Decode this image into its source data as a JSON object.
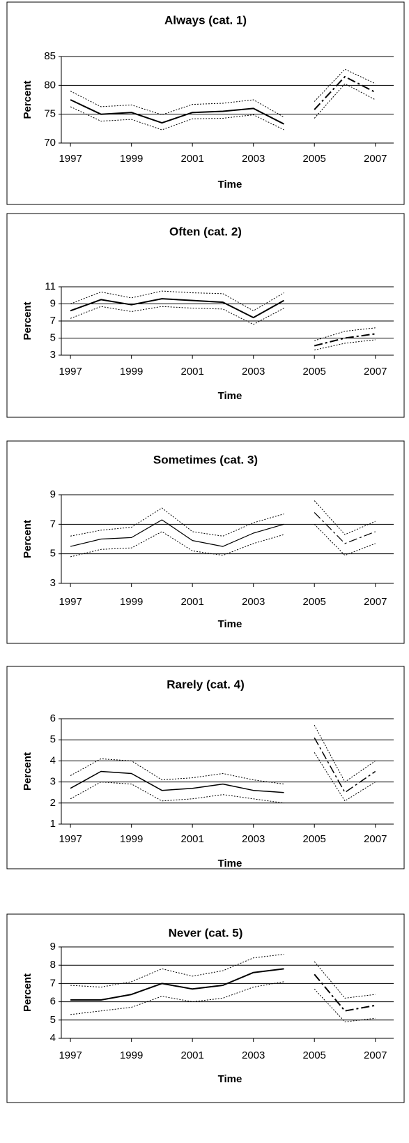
{
  "chart_data": [
    {
      "type": "line",
      "title": "Always (cat. 1)",
      "xlabel": "Time",
      "ylabel": "Percent",
      "x": [
        1997,
        1998,
        1999,
        2000,
        2001,
        2002,
        2003,
        2004,
        2005,
        2006,
        2007
      ],
      "xlim": [
        1996.7,
        2007.6
      ],
      "xticks": [
        1997,
        1999,
        2001,
        2003,
        2005,
        2007
      ],
      "ylim": [
        70,
        85
      ],
      "yticks": [
        70,
        75,
        80,
        85
      ],
      "grid": true,
      "line_width": 2,
      "series": [
        {
          "color": "#000000",
          "dash": "solid",
          "values": [
            77.5,
            75.0,
            75.3,
            73.5,
            75.3,
            75.5,
            76.0,
            73.3,
            null,
            null,
            null
          ]
        },
        {
          "color": "#000000",
          "dash": "dotted",
          "values": [
            79.0,
            76.3,
            76.6,
            74.9,
            76.7,
            76.9,
            77.5,
            74.5,
            null,
            null,
            null
          ]
        },
        {
          "color": "#000000",
          "dash": "dotted",
          "values": [
            76.3,
            73.8,
            74.1,
            72.3,
            74.2,
            74.3,
            74.9,
            72.3,
            null,
            null,
            null
          ]
        },
        {
          "color": "#000000",
          "dash": "dashdot",
          "values": [
            null,
            null,
            null,
            null,
            null,
            null,
            null,
            null,
            75.8,
            81.5,
            78.8
          ]
        },
        {
          "color": "#000000",
          "dash": "dotted",
          "values": [
            null,
            null,
            null,
            null,
            null,
            null,
            null,
            null,
            77.2,
            82.8,
            80.3
          ]
        },
        {
          "color": "#000000",
          "dash": "dotted",
          "values": [
            null,
            null,
            null,
            null,
            null,
            null,
            null,
            null,
            74.3,
            80.3,
            77.5
          ]
        }
      ]
    },
    {
      "type": "line",
      "title": "Often (cat. 2)",
      "xlabel": "Time",
      "ylabel": "Percent",
      "x": [
        1997,
        1998,
        1999,
        2000,
        2001,
        2002,
        2003,
        2004,
        2005,
        2006,
        2007
      ],
      "xlim": [
        1996.7,
        2007.6
      ],
      "xticks": [
        1997,
        1999,
        2001,
        2003,
        2005,
        2007
      ],
      "ylim": [
        3,
        11
      ],
      "yticks": [
        3,
        5,
        7,
        9,
        11
      ],
      "grid": true,
      "line_width": 2,
      "series": [
        {
          "color": "#000000",
          "dash": "solid",
          "values": [
            8.2,
            9.5,
            8.9,
            9.6,
            9.4,
            9.2,
            7.4,
            9.4,
            null,
            null,
            null
          ]
        },
        {
          "color": "#000000",
          "dash": "dotted",
          "values": [
            9.0,
            10.4,
            9.7,
            10.5,
            10.3,
            10.2,
            8.2,
            10.3,
            null,
            null,
            null
          ]
        },
        {
          "color": "#000000",
          "dash": "dotted",
          "values": [
            7.3,
            8.7,
            8.1,
            8.7,
            8.5,
            8.4,
            6.6,
            8.5,
            null,
            null,
            null
          ]
        },
        {
          "color": "#000000",
          "dash": "dashdot",
          "values": [
            null,
            null,
            null,
            null,
            null,
            null,
            null,
            null,
            4.1,
            5.0,
            5.5
          ]
        },
        {
          "color": "#000000",
          "dash": "dotted",
          "values": [
            null,
            null,
            null,
            null,
            null,
            null,
            null,
            null,
            4.7,
            5.8,
            6.2
          ]
        },
        {
          "color": "#000000",
          "dash": "dotted",
          "values": [
            null,
            null,
            null,
            null,
            null,
            null,
            null,
            null,
            3.6,
            4.4,
            4.8
          ]
        }
      ]
    },
    {
      "type": "line",
      "title": "Sometimes (cat. 3)",
      "xlabel": "Time",
      "ylabel": "Percent",
      "x": [
        1997,
        1998,
        1999,
        2000,
        2001,
        2002,
        2003,
        2004,
        2005,
        2006,
        2007
      ],
      "xlim": [
        1996.7,
        2007.6
      ],
      "xticks": [
        1997,
        1999,
        2001,
        2003,
        2005,
        2007
      ],
      "ylim": [
        3,
        9
      ],
      "yticks": [
        3,
        5,
        7,
        9
      ],
      "grid": true,
      "line_width": 1.2,
      "series": [
        {
          "color": "#000000",
          "dash": "solid",
          "values": [
            5.5,
            6.0,
            6.1,
            7.3,
            5.9,
            5.5,
            6.4,
            7.0,
            null,
            null,
            null
          ]
        },
        {
          "color": "#000000",
          "dash": "dotted",
          "values": [
            6.2,
            6.6,
            6.8,
            8.1,
            6.5,
            6.2,
            7.1,
            7.7,
            null,
            null,
            null
          ]
        },
        {
          "color": "#000000",
          "dash": "dotted",
          "values": [
            4.8,
            5.3,
            5.4,
            6.5,
            5.2,
            4.9,
            5.7,
            6.3,
            null,
            null,
            null
          ]
        },
        {
          "color": "#000000",
          "dash": "dashdot",
          "values": [
            null,
            null,
            null,
            null,
            null,
            null,
            null,
            null,
            7.8,
            5.7,
            6.5
          ]
        },
        {
          "color": "#000000",
          "dash": "dotted",
          "values": [
            null,
            null,
            null,
            null,
            null,
            null,
            null,
            null,
            8.6,
            6.3,
            7.2
          ]
        },
        {
          "color": "#000000",
          "dash": "dotted",
          "values": [
            null,
            null,
            null,
            null,
            null,
            null,
            null,
            null,
            7.0,
            4.9,
            5.7
          ]
        }
      ]
    },
    {
      "type": "line",
      "title": "Rarely (cat. 4)",
      "xlabel": "Time",
      "ylabel": "Percent",
      "x": [
        1997,
        1998,
        1999,
        2000,
        2001,
        2002,
        2003,
        2004,
        2005,
        2006,
        2007
      ],
      "xlim": [
        1996.7,
        2007.6
      ],
      "xticks": [
        1997,
        1999,
        2001,
        2003,
        2005,
        2007
      ],
      "ylim": [
        1,
        6
      ],
      "yticks": [
        1,
        2,
        3,
        4,
        5,
        6
      ],
      "grid": true,
      "line_width": 1.5,
      "series": [
        {
          "color": "#000000",
          "dash": "solid",
          "values": [
            2.7,
            3.5,
            3.4,
            2.6,
            2.7,
            2.9,
            2.6,
            2.5,
            null,
            null,
            null
          ]
        },
        {
          "color": "#000000",
          "dash": "dotted",
          "values": [
            3.3,
            4.1,
            4.0,
            3.1,
            3.2,
            3.4,
            3.1,
            2.9,
            null,
            null,
            null
          ]
        },
        {
          "color": "#000000",
          "dash": "dotted",
          "values": [
            2.2,
            3.0,
            2.9,
            2.1,
            2.2,
            2.4,
            2.2,
            2.0,
            null,
            null,
            null
          ]
        },
        {
          "color": "#000000",
          "dash": "dashdot",
          "values": [
            null,
            null,
            null,
            null,
            null,
            null,
            null,
            null,
            5.1,
            2.5,
            3.5
          ]
        },
        {
          "color": "#000000",
          "dash": "dotted",
          "values": [
            null,
            null,
            null,
            null,
            null,
            null,
            null,
            null,
            5.7,
            3.0,
            4.0
          ]
        },
        {
          "color": "#000000",
          "dash": "dotted",
          "values": [
            null,
            null,
            null,
            null,
            null,
            null,
            null,
            null,
            4.4,
            2.1,
            3.0
          ]
        }
      ]
    },
    {
      "type": "line",
      "title": "Never (cat. 5)",
      "xlabel": "Time",
      "ylabel": "Percent",
      "x": [
        1997,
        1998,
        1999,
        2000,
        2001,
        2002,
        2003,
        2004,
        2005,
        2006,
        2007
      ],
      "xlim": [
        1996.7,
        2007.6
      ],
      "xticks": [
        1997,
        1999,
        2001,
        2003,
        2005,
        2007
      ],
      "ylim": [
        4,
        9
      ],
      "yticks": [
        4,
        5,
        6,
        7,
        8,
        9
      ],
      "grid": true,
      "line_width": 2,
      "series": [
        {
          "color": "#000000",
          "dash": "solid",
          "values": [
            6.1,
            6.1,
            6.4,
            7.0,
            6.7,
            6.9,
            7.6,
            7.8,
            null,
            null,
            null
          ]
        },
        {
          "color": "#000000",
          "dash": "dotted",
          "values": [
            6.9,
            6.8,
            7.1,
            7.8,
            7.4,
            7.7,
            8.4,
            8.6,
            null,
            null,
            null
          ]
        },
        {
          "color": "#000000",
          "dash": "dotted",
          "values": [
            5.3,
            5.5,
            5.7,
            6.3,
            6.0,
            6.2,
            6.8,
            7.1,
            null,
            null,
            null
          ]
        },
        {
          "color": "#000000",
          "dash": "dashdot",
          "values": [
            null,
            null,
            null,
            null,
            null,
            null,
            null,
            null,
            7.5,
            5.5,
            5.8
          ]
        },
        {
          "color": "#000000",
          "dash": "dotted",
          "values": [
            null,
            null,
            null,
            null,
            null,
            null,
            null,
            null,
            8.2,
            6.2,
            6.4
          ]
        },
        {
          "color": "#000000",
          "dash": "dotted",
          "values": [
            null,
            null,
            null,
            null,
            null,
            null,
            null,
            null,
            6.7,
            4.9,
            5.1
          ]
        }
      ]
    }
  ]
}
